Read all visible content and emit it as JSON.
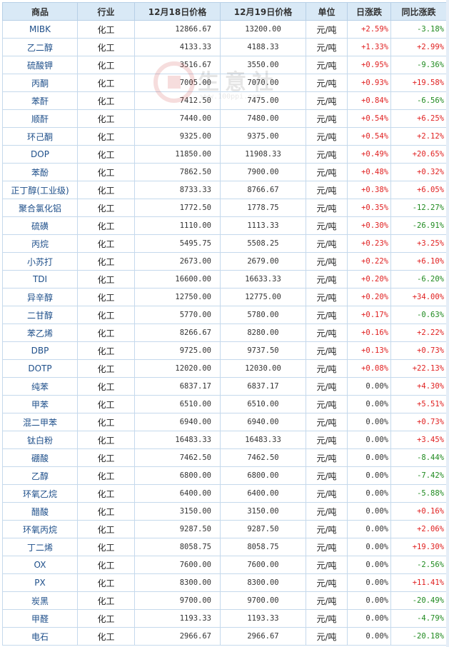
{
  "header": {
    "product": "商品",
    "industry": "行业",
    "price1": "12月18日价格",
    "price2": "12月19日价格",
    "unit": "单位",
    "daily": "日涨跌",
    "yoy": "同比涨跌"
  },
  "watermark": {
    "text": "生意社",
    "sub": "www.100ppi.com",
    "logo": "100ppi"
  },
  "rows": [
    {
      "name": "MIBK",
      "industry": "化工",
      "p1": "12866.67",
      "p2": "13200.00",
      "unit": "元/吨",
      "daily": "+2.59%",
      "yoy": "-3.18%"
    },
    {
      "name": "乙二醇",
      "industry": "化工",
      "p1": "4133.33",
      "p2": "4188.33",
      "unit": "元/吨",
      "daily": "+1.33%",
      "yoy": "+2.99%"
    },
    {
      "name": "硫酸钾",
      "industry": "化工",
      "p1": "3516.67",
      "p2": "3550.00",
      "unit": "元/吨",
      "daily": "+0.95%",
      "yoy": "-9.36%"
    },
    {
      "name": "丙酮",
      "industry": "化工",
      "p1": "7005.00",
      "p2": "7070.00",
      "unit": "元/吨",
      "daily": "+0.93%",
      "yoy": "+19.58%"
    },
    {
      "name": "苯酐",
      "industry": "化工",
      "p1": "7412.50",
      "p2": "7475.00",
      "unit": "元/吨",
      "daily": "+0.84%",
      "yoy": "-6.56%"
    },
    {
      "name": "顺酐",
      "industry": "化工",
      "p1": "7440.00",
      "p2": "7480.00",
      "unit": "元/吨",
      "daily": "+0.54%",
      "yoy": "+6.25%"
    },
    {
      "name": "环己酮",
      "industry": "化工",
      "p1": "9325.00",
      "p2": "9375.00",
      "unit": "元/吨",
      "daily": "+0.54%",
      "yoy": "+2.12%"
    },
    {
      "name": "DOP",
      "industry": "化工",
      "p1": "11850.00",
      "p2": "11908.33",
      "unit": "元/吨",
      "daily": "+0.49%",
      "yoy": "+20.65%"
    },
    {
      "name": "苯酚",
      "industry": "化工",
      "p1": "7862.50",
      "p2": "7900.00",
      "unit": "元/吨",
      "daily": "+0.48%",
      "yoy": "+0.32%"
    },
    {
      "name": "正丁醇(工业级)",
      "industry": "化工",
      "p1": "8733.33",
      "p2": "8766.67",
      "unit": "元/吨",
      "daily": "+0.38%",
      "yoy": "+6.05%"
    },
    {
      "name": "聚合氯化铝",
      "industry": "化工",
      "p1": "1772.50",
      "p2": "1778.75",
      "unit": "元/吨",
      "daily": "+0.35%",
      "yoy": "-12.27%"
    },
    {
      "name": "硫磺",
      "industry": "化工",
      "p1": "1110.00",
      "p2": "1113.33",
      "unit": "元/吨",
      "daily": "+0.30%",
      "yoy": "-26.91%"
    },
    {
      "name": "丙烷",
      "industry": "化工",
      "p1": "5495.75",
      "p2": "5508.25",
      "unit": "元/吨",
      "daily": "+0.23%",
      "yoy": "+3.25%"
    },
    {
      "name": "小苏打",
      "industry": "化工",
      "p1": "2673.00",
      "p2": "2679.00",
      "unit": "元/吨",
      "daily": "+0.22%",
      "yoy": "+6.10%"
    },
    {
      "name": "TDI",
      "industry": "化工",
      "p1": "16600.00",
      "p2": "16633.33",
      "unit": "元/吨",
      "daily": "+0.20%",
      "yoy": "-6.20%"
    },
    {
      "name": "异辛醇",
      "industry": "化工",
      "p1": "12750.00",
      "p2": "12775.00",
      "unit": "元/吨",
      "daily": "+0.20%",
      "yoy": "+34.00%"
    },
    {
      "name": "二甘醇",
      "industry": "化工",
      "p1": "5770.00",
      "p2": "5780.00",
      "unit": "元/吨",
      "daily": "+0.17%",
      "yoy": "-0.63%"
    },
    {
      "name": "苯乙烯",
      "industry": "化工",
      "p1": "8266.67",
      "p2": "8280.00",
      "unit": "元/吨",
      "daily": "+0.16%",
      "yoy": "+2.22%"
    },
    {
      "name": "DBP",
      "industry": "化工",
      "p1": "9725.00",
      "p2": "9737.50",
      "unit": "元/吨",
      "daily": "+0.13%",
      "yoy": "+0.73%"
    },
    {
      "name": "DOTP",
      "industry": "化工",
      "p1": "12020.00",
      "p2": "12030.00",
      "unit": "元/吨",
      "daily": "+0.08%",
      "yoy": "+22.13%"
    },
    {
      "name": "纯苯",
      "industry": "化工",
      "p1": "6837.17",
      "p2": "6837.17",
      "unit": "元/吨",
      "daily": "0.00%",
      "yoy": "+4.30%"
    },
    {
      "name": "甲苯",
      "industry": "化工",
      "p1": "6510.00",
      "p2": "6510.00",
      "unit": "元/吨",
      "daily": "0.00%",
      "yoy": "+5.51%"
    },
    {
      "name": "混二甲苯",
      "industry": "化工",
      "p1": "6940.00",
      "p2": "6940.00",
      "unit": "元/吨",
      "daily": "0.00%",
      "yoy": "+0.73%"
    },
    {
      "name": "钛白粉",
      "industry": "化工",
      "p1": "16483.33",
      "p2": "16483.33",
      "unit": "元/吨",
      "daily": "0.00%",
      "yoy": "+3.45%"
    },
    {
      "name": "硼酸",
      "industry": "化工",
      "p1": "7462.50",
      "p2": "7462.50",
      "unit": "元/吨",
      "daily": "0.00%",
      "yoy": "-8.44%"
    },
    {
      "name": "乙醇",
      "industry": "化工",
      "p1": "6800.00",
      "p2": "6800.00",
      "unit": "元/吨",
      "daily": "0.00%",
      "yoy": "-7.42%"
    },
    {
      "name": "环氧乙烷",
      "industry": "化工",
      "p1": "6400.00",
      "p2": "6400.00",
      "unit": "元/吨",
      "daily": "0.00%",
      "yoy": "-5.88%"
    },
    {
      "name": "醋酸",
      "industry": "化工",
      "p1": "3150.00",
      "p2": "3150.00",
      "unit": "元/吨",
      "daily": "0.00%",
      "yoy": "+0.16%"
    },
    {
      "name": "环氧丙烷",
      "industry": "化工",
      "p1": "9287.50",
      "p2": "9287.50",
      "unit": "元/吨",
      "daily": "0.00%",
      "yoy": "+2.06%"
    },
    {
      "name": "丁二烯",
      "industry": "化工",
      "p1": "8058.75",
      "p2": "8058.75",
      "unit": "元/吨",
      "daily": "0.00%",
      "yoy": "+19.30%"
    },
    {
      "name": "OX",
      "industry": "化工",
      "p1": "7600.00",
      "p2": "7600.00",
      "unit": "元/吨",
      "daily": "0.00%",
      "yoy": "-2.56%"
    },
    {
      "name": "PX",
      "industry": "化工",
      "p1": "8300.00",
      "p2": "8300.00",
      "unit": "元/吨",
      "daily": "0.00%",
      "yoy": "+11.41%"
    },
    {
      "name": "炭黑",
      "industry": "化工",
      "p1": "9700.00",
      "p2": "9700.00",
      "unit": "元/吨",
      "daily": "0.00%",
      "yoy": "-20.49%"
    },
    {
      "name": "甲醛",
      "industry": "化工",
      "p1": "1193.33",
      "p2": "1193.33",
      "unit": "元/吨",
      "daily": "0.00%",
      "yoy": "-4.79%"
    },
    {
      "name": "电石",
      "industry": "化工",
      "p1": "2966.67",
      "p2": "2966.67",
      "unit": "元/吨",
      "daily": "0.00%",
      "yoy": "-20.18%"
    }
  ],
  "colors": {
    "up": "#e02020",
    "down": "#1f8a1f",
    "header_bg": "#d9e9f6",
    "border": "#c5d9ec",
    "name": "#1e4f8a"
  }
}
